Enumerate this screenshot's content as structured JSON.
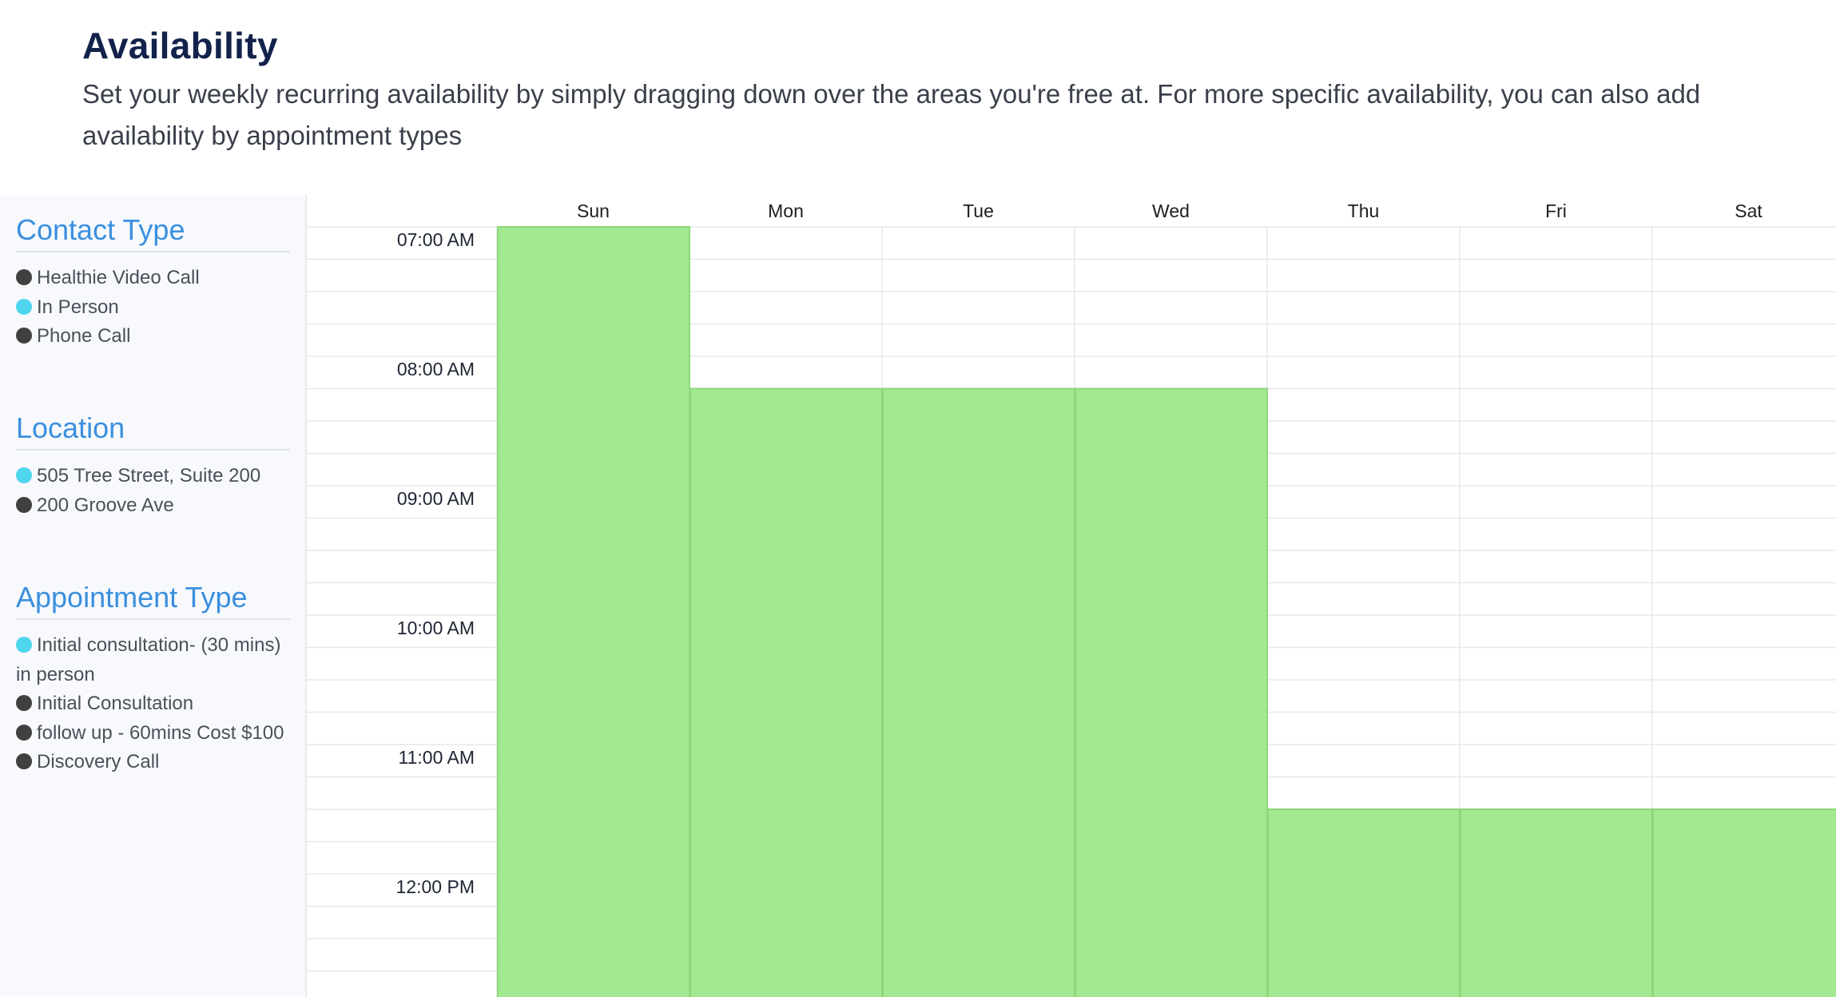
{
  "header": {
    "title": "Availability",
    "description": "Set your weekly recurring availability by simply dragging down over the areas you're free at. For more specific availability, you can also add availability by appointment types"
  },
  "sidebar": {
    "contact_type": {
      "title": "Contact Type",
      "items": [
        {
          "label": "Healthie Video Call",
          "dot": "dark"
        },
        {
          "label": "In Person",
          "dot": "cyan"
        },
        {
          "label": "Phone Call",
          "dot": "dark"
        }
      ]
    },
    "location": {
      "title": "Location",
      "items": [
        {
          "label": "505 Tree Street, Suite 200",
          "dot": "cyan"
        },
        {
          "label": "200 Groove Ave",
          "dot": "dark"
        }
      ]
    },
    "appointment_type": {
      "title": "Appointment Type",
      "items": [
        {
          "label": "Initial consultation- (30 mins) in person",
          "dot": "cyan"
        },
        {
          "label": "Initial Consultation",
          "dot": "dark"
        },
        {
          "label": "follow up - 60mins Cost $100",
          "dot": "dark"
        },
        {
          "label": "Discovery Call",
          "dot": "dark"
        }
      ]
    }
  },
  "calendar": {
    "days": [
      "Sun",
      "Mon",
      "Tue",
      "Wed",
      "Thu",
      "Fri",
      "Sat"
    ],
    "times": [
      "07:00 AM",
      "08:00 AM",
      "09:00 AM",
      "10:00 AM",
      "11:00 AM",
      "12:00 PM"
    ],
    "availability_start_hours": [
      7.0,
      8.25,
      8.25,
      8.25,
      11.5,
      11.5,
      11.5
    ],
    "colors": {
      "available_fill": "#a3e991",
      "available_border": "#8ed77a",
      "grid_line": "#e6e8ec"
    }
  }
}
